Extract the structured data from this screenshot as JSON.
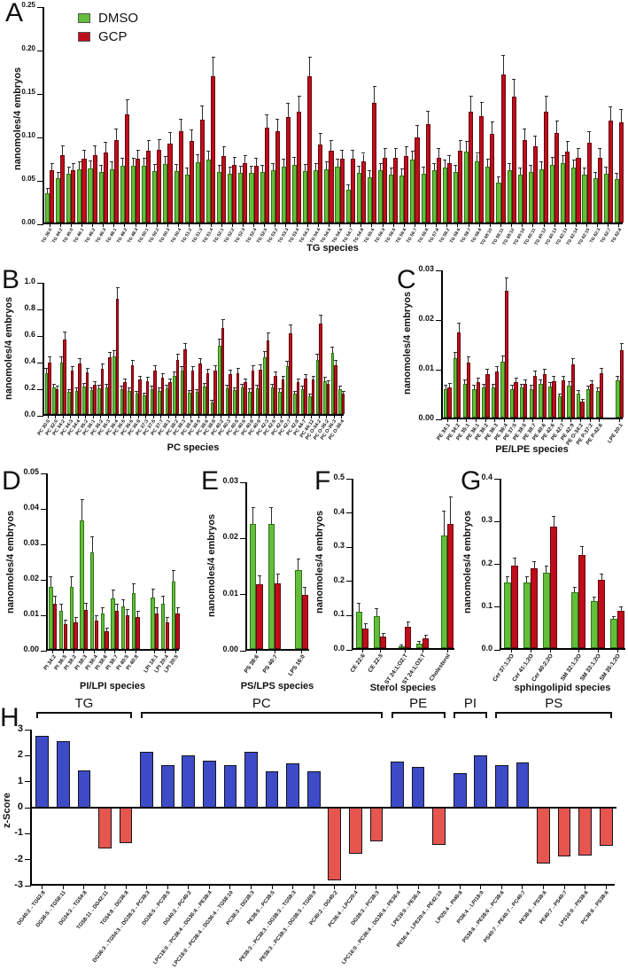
{
  "figure_labels": [
    "A",
    "B",
    "C",
    "D",
    "E",
    "F",
    "G",
    "H"
  ],
  "legend": {
    "dmso": "DMSO",
    "gcp": "GCP"
  },
  "colors": {
    "dmso_fill": "#63BE3A",
    "dmso_border": "#2E7414",
    "gcp_fill": "#C00D1C",
    "gcp_border": "#64070F",
    "zscore_positive": "#3D4BC7",
    "zscore_negative": "#E6554E",
    "zscore_border": "#14141E",
    "error_bar": "#2B2B2B"
  },
  "chart_data": [
    {
      "id": "A",
      "type": "bar",
      "xlabel": "TG species",
      "ylabel": "nanomoles/4 embryos",
      "ylim": [
        0,
        0.25
      ],
      "yticks": [
        0,
        0.05,
        0.1,
        0.15,
        0.2,
        0.25
      ],
      "ytick_labels": [
        "0.00",
        "0.05",
        "0.10",
        "0.15",
        "0.20",
        "0.25"
      ],
      "legend_position": "top-left",
      "err_frac": 0.13,
      "gaps": [],
      "categories": [
        "TG 36:0",
        "TG 44:2",
        "TG 45:0",
        "TG 46:1",
        "TG 46:2",
        "TG 46:3",
        "TG 48:1",
        "TG 48:2",
        "TG 48:3",
        "TG 50:1",
        "TG 50:2",
        "TG 50:3",
        "TG 50:4",
        "TG 51:2",
        "TG 51:3",
        "TG 51:4",
        "TG 52:1",
        "TG 52:2",
        "TG 52:3",
        "TG 52:4",
        "TG 52:5",
        "TG 53:2",
        "TG 53:3",
        "TG 53:4",
        "TG 54:3",
        "TG 54:4",
        "TG 54:5",
        "TG 54:6",
        "TG 54:7",
        "TG 54:8",
        "TG 55:6",
        "TG 56:3",
        "TG 56:5",
        "TG 56:6",
        "TG 56:7",
        "TG 56:8",
        "TG 57:8",
        "TG 58:2",
        "TG 58:6",
        "TG 58:7",
        "TG 58:8",
        "TG 58:10",
        "TG 58:11",
        "TG 58:12",
        "TG 60:10",
        "TG 60:11",
        "TG 60:12",
        "TG 60:13",
        "TG 62:13",
        "TG 62:14",
        "TG 62:15",
        "TG 62:3",
        "TG 62:7",
        "TG 62:8"
      ],
      "series": [
        {
          "name": "DMSO",
          "values": [
            0.034,
            0.051,
            0.056,
            0.061,
            0.062,
            0.058,
            0.061,
            0.065,
            0.065,
            0.065,
            0.059,
            0.067,
            0.059,
            0.055,
            0.069,
            0.072,
            0.058,
            0.056,
            0.057,
            0.057,
            0.058,
            0.06,
            0.064,
            0.066,
            0.059,
            0.06,
            0.061,
            0.064,
            0.038,
            0.057,
            0.052,
            0.06,
            0.055,
            0.054,
            0.072,
            0.056,
            0.06,
            0.063,
            0.058,
            0.082,
            0.07,
            0.064,
            0.046,
            0.06,
            0.055,
            0.058,
            0.061,
            0.066,
            0.068,
            0.063,
            0.055,
            0.051,
            0.056,
            0.05
          ]
        },
        {
          "name": "GCP",
          "values": [
            0.06,
            0.078,
            0.06,
            0.073,
            0.078,
            0.081,
            0.095,
            0.125,
            0.073,
            0.083,
            0.084,
            0.091,
            0.105,
            0.094,
            0.118,
            0.168,
            0.077,
            0.066,
            0.068,
            0.065,
            0.109,
            0.105,
            0.121,
            0.128,
            0.168,
            0.09,
            0.083,
            0.073,
            0.073,
            0.07,
            0.138,
            0.075,
            0.075,
            0.077,
            0.098,
            0.113,
            0.075,
            0.068,
            0.083,
            0.128,
            0.122,
            0.102,
            0.17,
            0.145,
            0.095,
            0.088,
            0.128,
            0.103,
            0.082,
            0.075,
            0.092,
            0.075,
            0.117,
            0.115
          ]
        }
      ]
    },
    {
      "id": "B",
      "type": "bar",
      "xlabel": "PC species",
      "ylabel": "nanomoles/4 embryos",
      "ylim": [
        0,
        1.0
      ],
      "yticks": [
        0,
        0.2,
        0.4,
        0.6,
        0.8,
        1.0
      ],
      "ytick_labels": [
        "0.0",
        "0.2",
        "0.4",
        "0.6",
        "0.8",
        "1.0"
      ],
      "err_frac": 0.09,
      "gaps": [],
      "categories": [
        "PC 30:0",
        "PC 32:0",
        "PC 34:2",
        "PC 34:3",
        "PC 34:4",
        "PC 35:2",
        "PC 36:1",
        "PC 36:2",
        "PC 36:3",
        "PC 36:4",
        "PC 36:5",
        "PC 36:6",
        "PC 36:9",
        "PC 37:3",
        "PC 37:5",
        "PC 37:7",
        "PC 38:1",
        "PC 38:2",
        "PC 38:3",
        "PC 38:4",
        "PC 38:5",
        "PC 38:6",
        "PC 38:8",
        "PC 40:2",
        "PC 40:3",
        "PC 40:5",
        "PC 40:6",
        "PC 40:8",
        "PC 40:9",
        "PC 42:3",
        "PC 42:5",
        "PC 42:6",
        "PC 42:7",
        "PC 42:8",
        "PC 44:7",
        "PC 44:12",
        "PC O-34:2",
        "PC O-36:2",
        "PC O-36:3",
        "PC O-38:4"
      ],
      "series": [
        {
          "name": "DMSO",
          "values": [
            0.31,
            0.2,
            0.39,
            0.165,
            0.175,
            0.205,
            0.18,
            0.195,
            0.2,
            0.435,
            0.19,
            0.175,
            0.155,
            0.14,
            0.19,
            0.175,
            0.195,
            0.29,
            0.325,
            0.16,
            0.165,
            0.21,
            0.09,
            0.515,
            0.195,
            0.18,
            0.2,
            0.17,
            0.195,
            0.43,
            0.2,
            0.17,
            0.36,
            0.155,
            0.19,
            0.135,
            0.41,
            0.25,
            0.46,
            0.19
          ]
        },
        {
          "name": "GCP",
          "values": [
            0.39,
            0.19,
            0.56,
            0.325,
            0.38,
            0.315,
            0.22,
            0.34,
            0.425,
            0.87,
            0.24,
            0.365,
            0.26,
            0.25,
            0.33,
            0.275,
            0.24,
            0.41,
            0.485,
            0.325,
            0.38,
            0.305,
            0.33,
            0.65,
            0.3,
            0.31,
            0.24,
            0.33,
            0.335,
            0.555,
            0.285,
            0.26,
            0.61,
            0.24,
            0.27,
            0.26,
            0.68,
            0.225,
            0.37,
            0.155
          ]
        }
      ]
    },
    {
      "id": "C",
      "type": "bar",
      "xlabel": "PE/LPE species",
      "ylabel": "nanomoles/4 embryos",
      "ylim": [
        0,
        0.03
      ],
      "yticks": [
        0,
        0.01,
        0.02,
        0.03
      ],
      "ytick_labels": [
        "0.00",
        "0.01",
        "0.02",
        "0.03"
      ],
      "err_frac": 0.1,
      "gaps": [
        17
      ],
      "categories": [
        "PE 34:1",
        "PE 34:2",
        "PE 35:1",
        "PE 36:1",
        "PE 36:2",
        "PE 36:3",
        "PE 36:4",
        "PE 37:5",
        "PE 38:5",
        "PE 38:7",
        "PE 40:6",
        "PE 42:6",
        "PE 42:7",
        "PE 42:9",
        "PE O-34:2",
        "PE P-37:2",
        "PE P-42:6",
        "LPE 20:1"
      ],
      "series": [
        {
          "name": "DMSO",
          "values": [
            0.0058,
            0.0119,
            0.0068,
            0.0058,
            0.006,
            0.006,
            0.0112,
            0.0058,
            0.006,
            0.0058,
            0.0068,
            0.0063,
            0.0042,
            0.0065,
            0.0049,
            0.0057,
            0.0054,
            0.0075
          ]
        },
        {
          "name": "GCP",
          "values": [
            0.0061,
            0.0172,
            0.011,
            0.0072,
            0.0087,
            0.0092,
            0.0255,
            0.0071,
            0.0068,
            0.0084,
            0.0088,
            0.0074,
            0.0075,
            0.0107,
            0.0033,
            0.0067,
            0.0089,
            0.0135
          ]
        }
      ]
    },
    {
      "id": "D",
      "type": "bar",
      "xlabel": "PI/LPI species",
      "ylabel": "nanomoles/4 embryos",
      "ylim": [
        0,
        0.05
      ],
      "yticks": [
        0,
        0.01,
        0.02,
        0.03,
        0.04,
        0.05
      ],
      "ytick_labels": [
        "0.00",
        "0.01",
        "0.02",
        "0.03",
        "0.04",
        "0.05"
      ],
      "err_frac": 0.16,
      "gaps": [
        9
      ],
      "categories": [
        "PI 34:2",
        "PI 36:5",
        "PI 38:2",
        "PI 38:3",
        "PI 38:4",
        "PI 38:6",
        "PI 38:7",
        "PI 40:5",
        "PI 40:8",
        "LPI 18:1",
        "LPI 20:4",
        "LPI 20:5"
      ],
      "series": [
        {
          "name": "DMSO",
          "values": [
            0.0175,
            0.0107,
            0.0174,
            0.0363,
            0.0272,
            0.01,
            0.0143,
            0.0119,
            0.0157,
            0.0145,
            0.0128,
            0.019
          ]
        },
        {
          "name": "GCP",
          "values": [
            0.0128,
            0.007,
            0.0075,
            0.011,
            0.008,
            0.005,
            0.0107,
            0.0094,
            0.009,
            0.01,
            0.0075,
            0.01
          ]
        }
      ]
    },
    {
      "id": "E",
      "type": "bar",
      "xlabel": "PS/LPS species",
      "ylabel": "nanomoles/4 embryos",
      "ylim": [
        0,
        0.03
      ],
      "yticks": [
        0,
        0.01,
        0.02,
        0.03
      ],
      "ytick_labels": [
        "0.00",
        "0.01",
        "0.02",
        "0.03"
      ],
      "err_frac": 0.13,
      "gaps": [
        2
      ],
      "categories": [
        "PS 38:6",
        "PS 40:7",
        "LPS 16:0"
      ],
      "series": [
        {
          "name": "DMSO",
          "values": [
            0.0222,
            0.0222,
            0.0141
          ]
        },
        {
          "name": "GCP",
          "values": [
            0.0115,
            0.0117,
            0.0097
          ]
        }
      ]
    },
    {
      "id": "F",
      "type": "bar",
      "xlabel": "Sterol species",
      "ylabel": "nanomoles/4 embryos",
      "ylim": [
        0,
        0.5
      ],
      "yticks": [
        0,
        0.1,
        0.2,
        0.3,
        0.4,
        0.5
      ],
      "ytick_labels": [
        "0.0",
        "0.1",
        "0.2",
        "0.3",
        "0.4",
        "0.5"
      ],
      "err_frac": 0.22,
      "gaps": [
        2,
        4
      ],
      "categories": [
        "CE 22:6",
        "CE 22:5",
        "ST 24:1;O2;T",
        "ST 24:1;O3;T",
        "Cholesterol"
      ],
      "series": [
        {
          "name": "DMSO",
          "values": [
            0.106,
            0.093,
            0.002,
            0.012,
            0.328
          ]
        },
        {
          "name": "GCP",
          "values": [
            0.057,
            0.035,
            0.061,
            0.029,
            0.362
          ]
        }
      ]
    },
    {
      "id": "G",
      "type": "bar",
      "xlabel": "sphingolipid species",
      "ylabel": "nanomoles/4 embryos",
      "ylim": [
        0,
        0.4
      ],
      "yticks": [
        0,
        0.1,
        0.2,
        0.3,
        0.4
      ],
      "ytick_labels": [
        "0.0",
        "0.1",
        "0.2",
        "0.3",
        "0.4"
      ],
      "err_frac": 0.08,
      "gaps": [
        3
      ],
      "categories": [
        "Cer 37:1;2O",
        "Cer 41:1;2O",
        "Cer 40:2;2O",
        "SM 32:1;2O",
        "SM 33:1;2O",
        "SM 35:1;2O"
      ],
      "series": [
        {
          "name": "DMSO",
          "values": [
            0.153,
            0.153,
            0.176,
            0.131,
            0.11,
            0.068
          ]
        },
        {
          "name": "GCP",
          "values": [
            0.193,
            0.186,
            0.285,
            0.218,
            0.16,
            0.088
          ]
        }
      ]
    },
    {
      "id": "H",
      "type": "bar",
      "xlabel": "",
      "ylabel": "z-Score",
      "ylim": [
        -3,
        3
      ],
      "yticks": [
        -3,
        -2,
        -1,
        0,
        1,
        2,
        3
      ],
      "ytick_labels": [
        "-3",
        "-2",
        "-1",
        "0",
        "1",
        "2",
        "3"
      ],
      "categories": [
        "DG40:2→TG62:8",
        "DG36:5→TG58:11",
        "DG34:3→TG54:8",
        "TG58:11→DG42:11",
        "TG54:8→DG36:8",
        "DG36:3→TG54:3→DG38:3→PC38:3",
        "DG36:5→PC38:5",
        "DG40:2→PC40:2",
        "LPC18:0→PC38:4→DG36:4→PE38:4",
        "LPC18:0→PC38:4→DG36:4→TG58:10",
        "PC38:3→DG38:3",
        "PE38:5→PC38:5",
        "PE38:3→PC38:3→DG38:3→TG58:3",
        "PE38:3→PC38:3→DG38:3→TG60:9",
        "PC40:2→DG40:2",
        "PC36:4→LPC20:4",
        "DG38:3→PC38:3",
        "LPC16:0→PC36:4→DG36:4→PE36:4",
        "LPE18:0→PE36:4",
        "PE36:4→LPE20:4→PE42:10",
        "LPI20:4→PI40:8",
        "PI38:4→LPI18:0",
        "PS38:6→PE38:6→PC38:6",
        "PS40:7→PE40:7→PC40:7",
        "PE38:6→PS38:6",
        "PE40:7→PS40:7",
        "LPS16:0→PS38:6",
        "PC38:6→PS38:6"
      ],
      "values": [
        2.75,
        2.55,
        1.42,
        -1.57,
        -1.36,
        2.14,
        1.63,
        2.01,
        1.79,
        1.63,
        2.15,
        1.4,
        1.69,
        1.41,
        -2.79,
        -1.77,
        -1.31,
        1.78,
        1.57,
        -1.42,
        1.34,
        2.02,
        1.65,
        1.73,
        -2.16,
        -1.86,
        -1.85,
        -1.46
      ],
      "groups": [
        {
          "label": "TG",
          "start": 0,
          "end": 4
        },
        {
          "label": "PC",
          "start": 5,
          "end": 16
        },
        {
          "label": "PE",
          "start": 17,
          "end": 19
        },
        {
          "label": "PI",
          "start": 20,
          "end": 21
        },
        {
          "label": "PS",
          "start": 22,
          "end": 27
        }
      ]
    }
  ]
}
